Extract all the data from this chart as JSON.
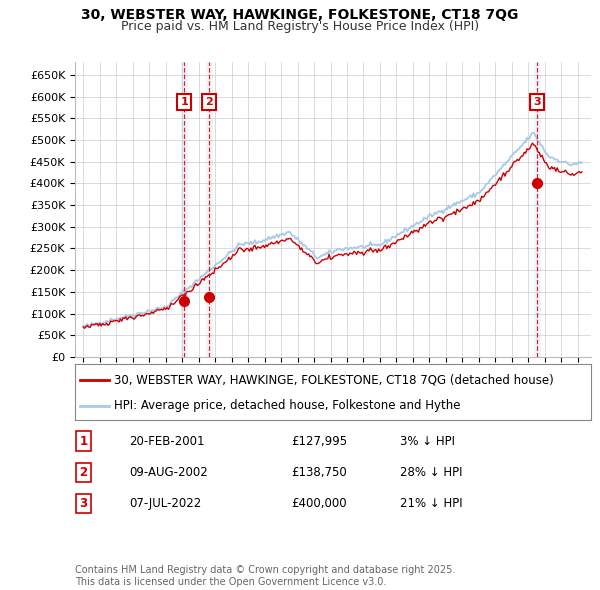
{
  "title_line1": "30, WEBSTER WAY, HAWKINGE, FOLKESTONE, CT18 7QG",
  "title_line2": "Price paid vs. HM Land Registry's House Price Index (HPI)",
  "ylim": [
    0,
    680000
  ],
  "yticks": [
    0,
    50000,
    100000,
    150000,
    200000,
    250000,
    300000,
    350000,
    400000,
    450000,
    500000,
    550000,
    600000,
    650000
  ],
  "ytick_labels": [
    "£0",
    "£50K",
    "£100K",
    "£150K",
    "£200K",
    "£250K",
    "£300K",
    "£350K",
    "£400K",
    "£450K",
    "£500K",
    "£550K",
    "£600K",
    "£650K"
  ],
  "xlim_start": 1994.5,
  "xlim_end": 2025.8,
  "background_color": "#ffffff",
  "plot_bg_color": "#ffffff",
  "grid_color": "#cccccc",
  "hpi_line_color": "#aac8e8",
  "price_line_color": "#cc0000",
  "legend_label_price": "30, WEBSTER WAY, HAWKINGE, FOLKESTONE, CT18 7QG (detached house)",
  "legend_label_hpi": "HPI: Average price, detached house, Folkestone and Hythe",
  "transactions": [
    {
      "id": 1,
      "date_label": "20-FEB-2001",
      "date_x": 2001.13,
      "price": 127995,
      "pct_label": "3% ↓ HPI"
    },
    {
      "id": 2,
      "date_label": "09-AUG-2002",
      "date_x": 2002.61,
      "price": 138750,
      "pct_label": "28% ↓ HPI"
    },
    {
      "id": 3,
      "date_label": "07-JUL-2022",
      "date_x": 2022.52,
      "price": 400000,
      "pct_label": "21% ↓ HPI"
    }
  ],
  "footer_line1": "Contains HM Land Registry data © Crown copyright and database right 2025.",
  "footer_line2": "This data is licensed under the Open Government Licence v3.0.",
  "title_fontsize": 10,
  "subtitle_fontsize": 9,
  "tick_fontsize": 8,
  "legend_fontsize": 8.5,
  "table_fontsize": 8.5,
  "footer_fontsize": 7
}
